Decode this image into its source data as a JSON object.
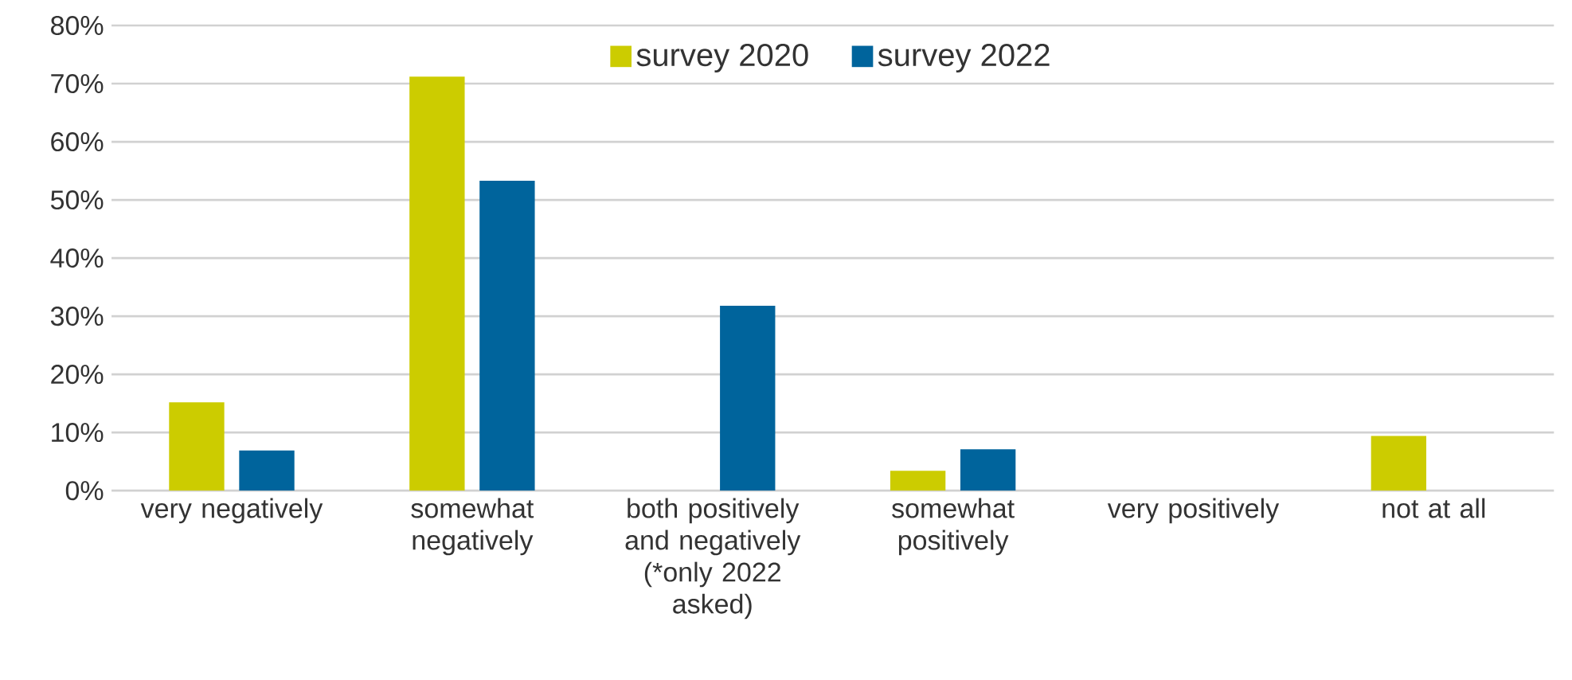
{
  "chart_data": {
    "type": "bar",
    "categories": [
      "very negatively",
      "somewhat negatively",
      "both positively and negatively (*only 2022 asked)",
      "somewhat positively",
      "very positively",
      "not at all"
    ],
    "series": [
      {
        "name": "survey 2020",
        "color": "#cccc00",
        "values": [
          15.2,
          71.2,
          0,
          3.4,
          0,
          9.4
        ]
      },
      {
        "name": "survey 2022",
        "color": "#00649c",
        "values": [
          6.9,
          53.3,
          31.8,
          7.1,
          0,
          0
        ]
      }
    ],
    "ylim": [
      0,
      80
    ],
    "yticks": [
      {
        "value": 0,
        "label": "0%"
      },
      {
        "value": 10,
        "label": "10%"
      },
      {
        "value": 20,
        "label": "20%"
      },
      {
        "value": 30,
        "label": "30%"
      },
      {
        "value": 40,
        "label": "40%"
      },
      {
        "value": 50,
        "label": "50%"
      },
      {
        "value": 60,
        "label": "60%"
      },
      {
        "value": 70,
        "label": "70%"
      },
      {
        "value": 80,
        "label": "80%"
      }
    ],
    "grid": "y",
    "legend": "top"
  }
}
